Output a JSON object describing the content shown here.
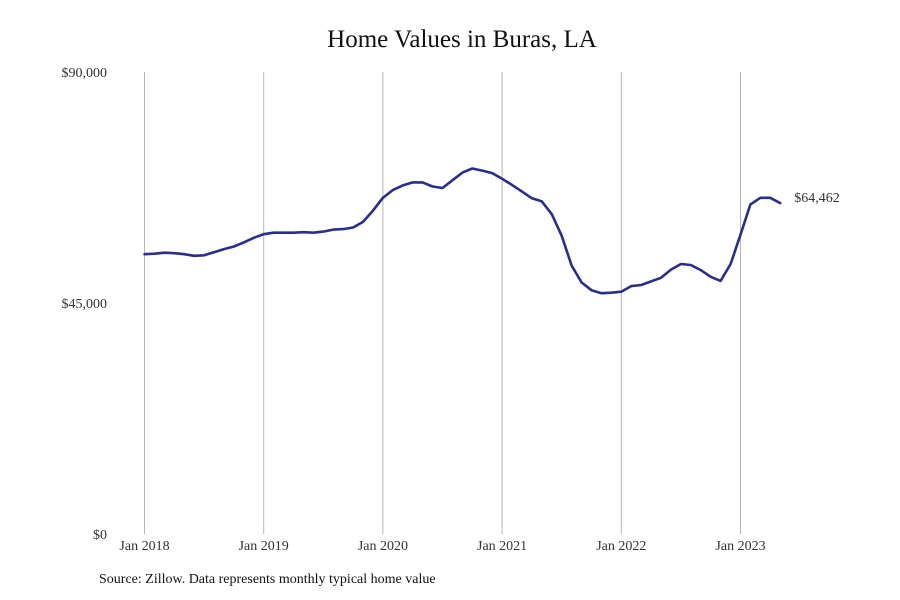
{
  "chart_data": {
    "type": "line",
    "title": "Home Values in Buras, LA",
    "xlabel": "",
    "ylabel": "",
    "ylim": [
      0,
      90000
    ],
    "yticks": [
      0,
      45000,
      90000
    ],
    "ytick_labels": [
      "$0",
      "$45,000",
      "$90,000"
    ],
    "xticks": [
      "2018-01",
      "2019-01",
      "2020-01",
      "2021-01",
      "2022-01",
      "2023-01"
    ],
    "xtick_labels": [
      "Jan 2018",
      "Jan 2019",
      "Jan 2020",
      "Jan 2021",
      "Jan 2022",
      "Jan 2023"
    ],
    "xlim": [
      "2018-01",
      "2023-12"
    ],
    "grid": "vertical",
    "line_color": "#2b2d8a",
    "end_label": "$64,462",
    "series": [
      {
        "x": [
          "2018-01",
          "2018-02",
          "2018-03",
          "2018-04",
          "2018-05",
          "2018-06",
          "2018-07",
          "2018-08",
          "2018-09",
          "2018-10",
          "2018-11",
          "2018-12",
          "2019-01",
          "2019-02",
          "2019-03",
          "2019-04",
          "2019-05",
          "2019-06",
          "2019-07",
          "2019-08",
          "2019-09",
          "2019-10",
          "2019-11",
          "2019-12",
          "2020-01",
          "2020-02",
          "2020-03",
          "2020-04",
          "2020-05",
          "2020-06",
          "2020-07",
          "2020-08",
          "2020-09",
          "2020-10",
          "2020-11",
          "2020-12",
          "2021-01",
          "2021-02",
          "2021-03",
          "2021-04",
          "2021-05",
          "2021-06",
          "2021-07",
          "2021-08",
          "2021-09",
          "2021-10",
          "2021-11",
          "2021-12",
          "2022-01",
          "2022-02",
          "2022-03",
          "2022-04",
          "2022-05",
          "2022-06",
          "2022-07",
          "2022-08",
          "2022-09",
          "2022-10",
          "2022-11",
          "2022-12",
          "2023-01",
          "2023-02",
          "2023-03",
          "2023-04",
          "2023-05"
        ],
        "values": [
          54500,
          54600,
          54800,
          54700,
          54500,
          54200,
          54300,
          54900,
          55500,
          56000,
          56800,
          57700,
          58400,
          58700,
          58700,
          58700,
          58800,
          58700,
          58900,
          59300,
          59400,
          59700,
          60800,
          63000,
          65500,
          67000,
          67900,
          68500,
          68500,
          67700,
          67400,
          68900,
          70400,
          71200,
          70800,
          70300,
          69200,
          68000,
          66700,
          65400,
          64800,
          62300,
          58100,
          52300,
          49000,
          47500,
          46900,
          47000,
          47200,
          48300,
          48500,
          49200,
          49900,
          51500,
          52600,
          52400,
          51400,
          50100,
          49300,
          52600,
          58300,
          64200,
          65500,
          65500,
          64462
        ]
      }
    ]
  },
  "source_note": "Source: Zillow. Data represents monthly typical home value"
}
